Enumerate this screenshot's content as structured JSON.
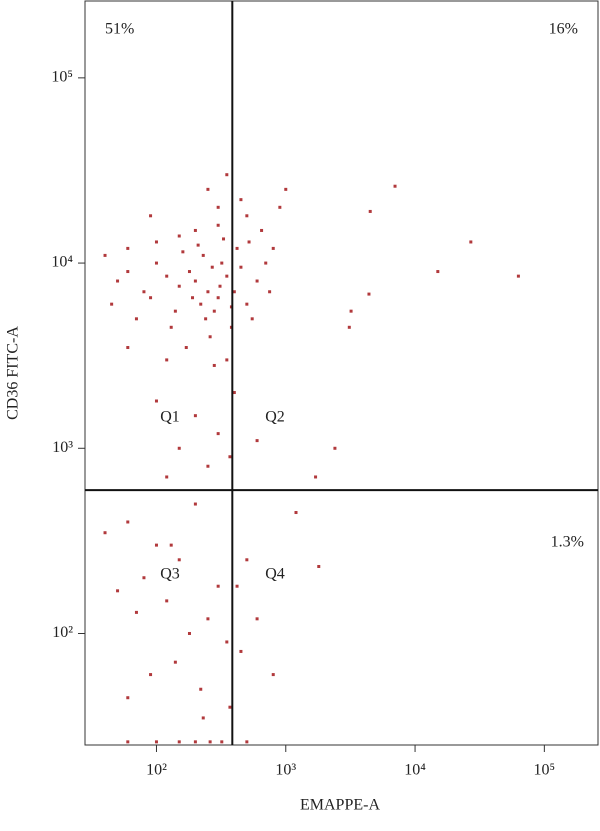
{
  "chart_data": {
    "type": "scatter",
    "x_label": "EMAPPE-A",
    "y_label": "CD36 FITC-A",
    "log_x": true,
    "log_y": true,
    "xlim": [
      28,
      260000
    ],
    "ylim": [
      25,
      260000
    ],
    "xticks": [
      {
        "value": 100,
        "label": "10²"
      },
      {
        "value": 1000,
        "label": "10³"
      },
      {
        "value": 10000,
        "label": "10⁴"
      },
      {
        "value": 100000,
        "label": "10⁵"
      }
    ],
    "yticks": [
      {
        "value": 100,
        "label": "10²"
      },
      {
        "value": 1000,
        "label": "10³"
      },
      {
        "value": 10000,
        "label": "10⁴"
      },
      {
        "value": 100000,
        "label": "10⁵"
      }
    ],
    "gates": {
      "x": 386,
      "y": 594
    },
    "quadrant_labels": [
      "Q1",
      "Q2",
      "Q3",
      "Q4"
    ],
    "percent_labels": [
      "51%",
      "16%",
      "1.3%"
    ],
    "color": "#a3161a",
    "x": [
      200,
      250,
      300,
      180,
      350,
      280,
      220,
      320,
      150,
      400,
      450,
      500,
      120,
      100,
      80,
      60,
      45,
      70,
      130,
      260,
      380,
      550,
      600,
      700,
      800,
      650,
      500,
      300,
      200,
      150,
      100,
      60,
      40,
      90,
      250,
      350,
      450,
      900,
      1000,
      230,
      270,
      310,
      190,
      240,
      170,
      350,
      280,
      120,
      60,
      420,
      520,
      160,
      210,
      330,
      380,
      300,
      140,
      90,
      50,
      750,
      200,
      300,
      150,
      370,
      250,
      100,
      400,
      600,
      2400,
      1700,
      120,
      7000,
      4500,
      27000,
      15000,
      63000,
      3200,
      4400,
      3100,
      40,
      60,
      100,
      150,
      200,
      80,
      50,
      120,
      250,
      300,
      350,
      180,
      140,
      90,
      60,
      220,
      420,
      500,
      1200,
      1800,
      600,
      450,
      800,
      370,
      230,
      130,
      70,
      60,
      100,
      150,
      200,
      260,
      320,
      500
    ],
    "y": [
      8000,
      7000,
      6500,
      9000,
      8500,
      5500,
      6000,
      10000,
      7500,
      7000,
      9500,
      6000,
      8500,
      10000,
      7000,
      9000,
      6000,
      5000,
      4500,
      4000,
      4500,
      5000,
      8000,
      10000,
      12000,
      15000,
      18000,
      20000,
      15000,
      14000,
      13000,
      12000,
      11000,
      18000,
      25000,
      30000,
      22000,
      20000,
      25000,
      11000,
      9500,
      7500,
      6500,
      5000,
      3500,
      3000,
      2800,
      3000,
      3500,
      12000,
      13000,
      11500,
      12500,
      13500,
      5800,
      16000,
      5500,
      6500,
      8000,
      7000,
      1500,
      1200,
      1000,
      900,
      800,
      1800,
      2000,
      1100,
      1000,
      700,
      700,
      26000,
      19000,
      13000,
      9000,
      8500,
      5500,
      6800,
      4500,
      350,
      400,
      300,
      250,
      500,
      200,
      170,
      150,
      120,
      180,
      90,
      100,
      70,
      60,
      45,
      50,
      180,
      250,
      450,
      230,
      120,
      80,
      60,
      40,
      35,
      300,
      130,
      26,
      26,
      26,
      26,
      26,
      26,
      26
    ]
  }
}
